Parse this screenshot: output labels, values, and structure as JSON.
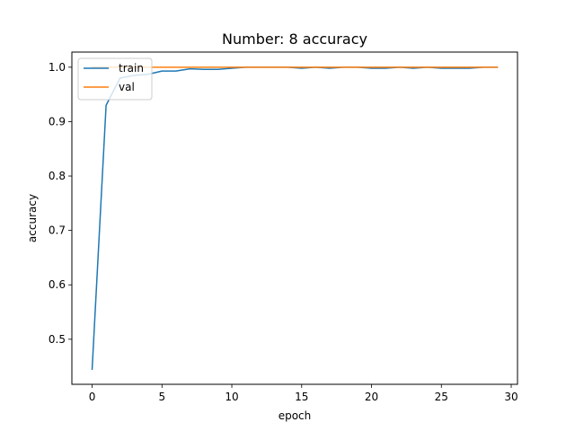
{
  "chart_data": {
    "type": "line",
    "title": "Number: 8 accuracy",
    "xlabel": "epoch",
    "ylabel": "accuracy",
    "xlim": [
      -1.45,
      30.45
    ],
    "ylim": [
      0.4172,
      1.0278
    ],
    "xticks": [
      0,
      5,
      10,
      15,
      20,
      25,
      30
    ],
    "yticks": [
      0.5,
      0.6,
      0.7,
      0.8,
      0.9,
      1.0
    ],
    "ytick_labels": [
      "0.5",
      "0.6",
      "0.7",
      "0.8",
      "0.9",
      "1.0"
    ],
    "grid": false,
    "legend": "top-left",
    "series": [
      {
        "name": "train",
        "color": "#1f77b4",
        "x": [
          0,
          1,
          2,
          3,
          4,
          5,
          6,
          7,
          8,
          9,
          10,
          11,
          12,
          13,
          14,
          15,
          16,
          17,
          18,
          19,
          20,
          21,
          22,
          23,
          24,
          25,
          26,
          27,
          28,
          29
        ],
        "values": [
          0.445,
          0.93,
          0.98,
          0.985,
          0.987,
          0.993,
          0.993,
          0.997,
          0.996,
          0.996,
          0.998,
          1.0,
          1.0,
          1.0,
          1.0,
          0.998,
          1.0,
          0.998,
          1.0,
          1.0,
          0.998,
          0.998,
          1.0,
          0.998,
          1.0,
          0.998,
          0.998,
          0.998,
          1.0,
          1.0
        ]
      },
      {
        "name": "val",
        "color": "#ff7f0e",
        "x": [
          0,
          1,
          2,
          3,
          4,
          5,
          6,
          7,
          8,
          9,
          10,
          11,
          12,
          13,
          14,
          15,
          16,
          17,
          18,
          19,
          20,
          21,
          22,
          23,
          24,
          25,
          26,
          27,
          28,
          29
        ],
        "values": [
          1.0,
          1.0,
          1.0,
          1.0,
          1.0,
          1.0,
          1.0,
          1.0,
          1.0,
          1.0,
          1.0,
          1.0,
          1.0,
          1.0,
          1.0,
          1.0,
          1.0,
          1.0,
          1.0,
          1.0,
          1.0,
          1.0,
          1.0,
          1.0,
          1.0,
          1.0,
          1.0,
          1.0,
          1.0,
          1.0
        ]
      }
    ]
  }
}
